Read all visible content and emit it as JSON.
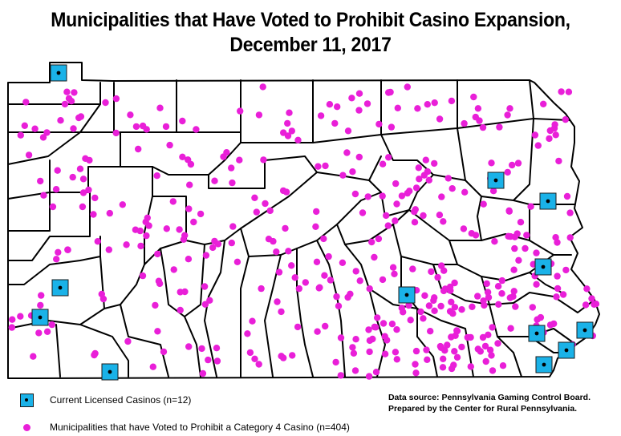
{
  "title_line1": "Municipalities that Have Voted to Prohibit Casino Expansion,",
  "title_line2": "December 11, 2017",
  "legend": {
    "casinos_label": "Current Licensed Casinos (n=12)",
    "municipalities_label": "Municipalities that have Voted to Prohibit a Category 4 Casino (n=404)"
  },
  "source": {
    "line1": "Data source: Pennsylvania Gaming Control Board.",
    "line2": "Prepared by the Center for Rural Pennsylvania."
  },
  "colors": {
    "casino_fill": "#1ab2e8",
    "municipality_dot": "#e91fd8",
    "county_border": "#000000"
  },
  "icons": {
    "casino": "square-with-dot",
    "municipality": "magenta-dot"
  }
}
